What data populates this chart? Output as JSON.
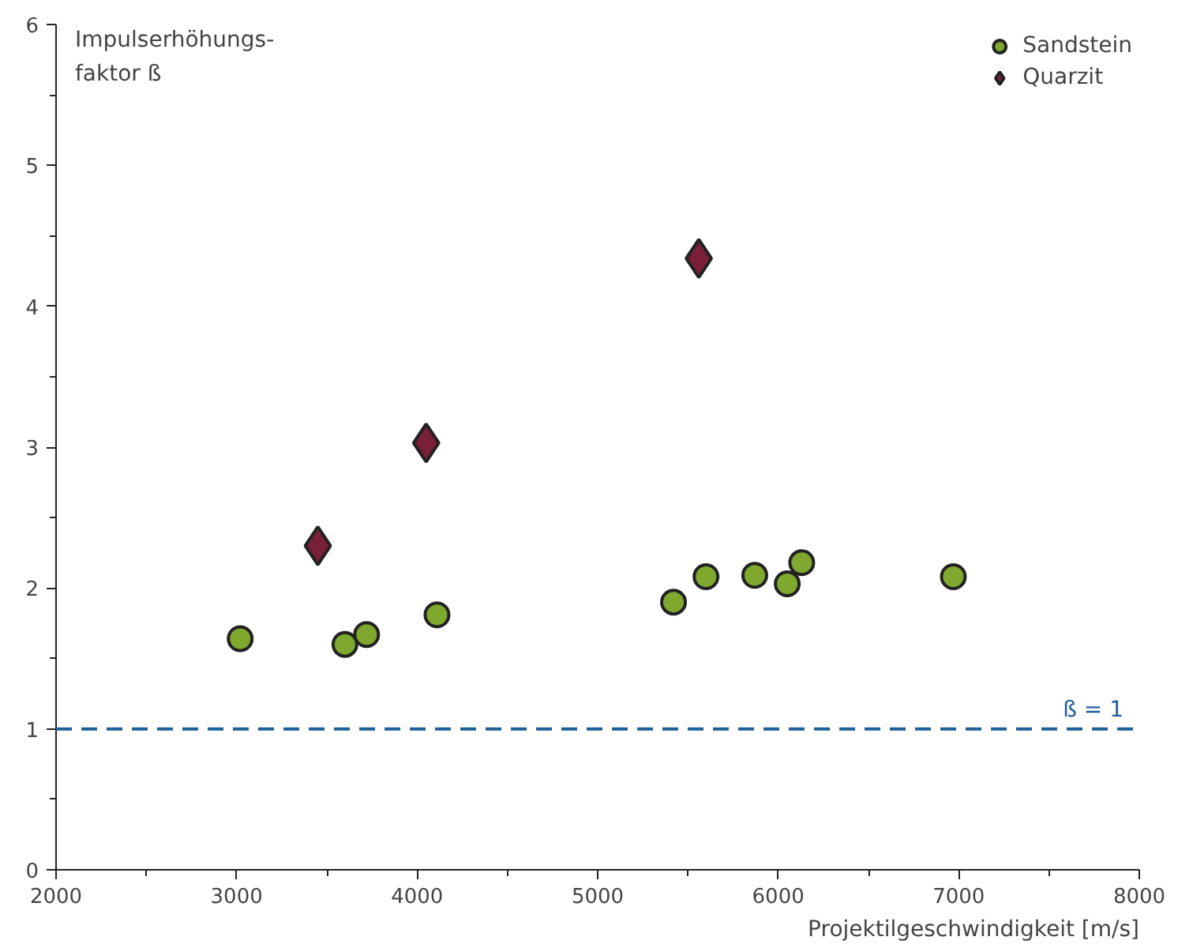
{
  "chart_data": {
    "type": "scatter",
    "ylabel": "Impulserhöhungs-\nfaktor ß",
    "xlabel": "Projektilgeschwindigkeit [m/s]",
    "series": [
      {
        "name": "Sandstein",
        "color": "#7fa82e",
        "marker": "circle",
        "x": [
          3020,
          3600,
          3720,
          4110,
          5420,
          5600,
          5870,
          6050,
          6130,
          6970
        ],
        "values": [
          1.64,
          1.6,
          1.67,
          1.81,
          1.9,
          2.08,
          2.09,
          2.03,
          2.18,
          2.08
        ]
      },
      {
        "name": "Quarzit",
        "color": "#7a1f3a",
        "marker": "diamond",
        "x": [
          3450,
          4050,
          5560
        ],
        "values": [
          2.3,
          3.03,
          4.34
        ]
      }
    ],
    "xlim": [
      2000,
      8000
    ],
    "xticks": [
      2000,
      3000,
      4000,
      5000,
      6000,
      7000,
      8000
    ],
    "ylim": [
      0,
      6
    ],
    "yticks": [
      0,
      1,
      2,
      3,
      4,
      5,
      6
    ],
    "ref_lines": [
      {
        "axis": "y",
        "value": 1,
        "label": "ß = 1",
        "color": "#1f5f99",
        "line_style": "dashed"
      }
    ],
    "grid": false,
    "legend": "top right"
  }
}
